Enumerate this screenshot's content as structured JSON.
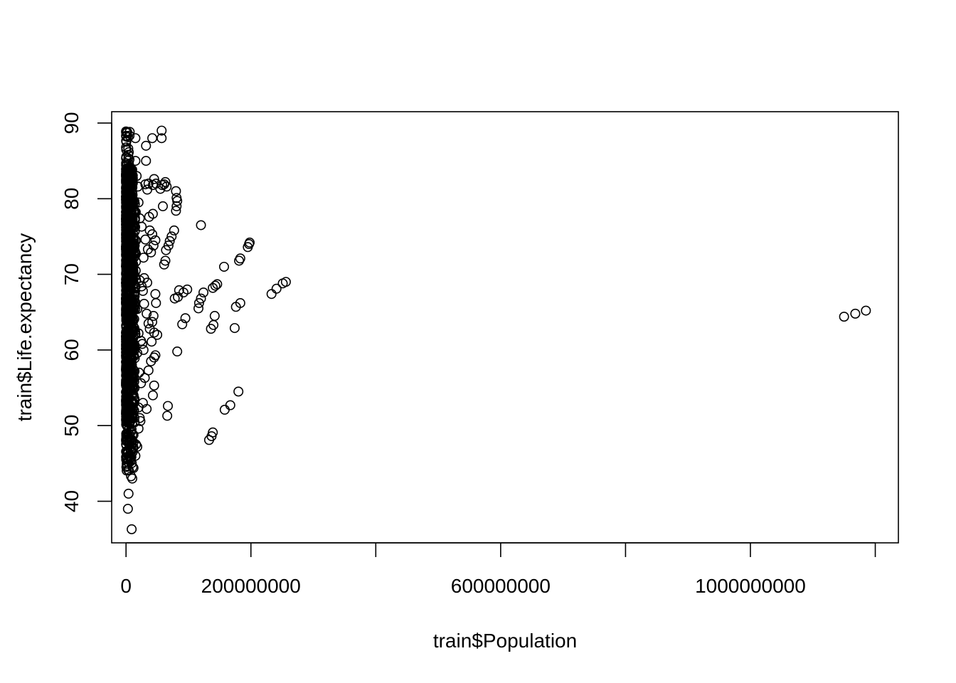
{
  "chart_data": {
    "type": "scatter",
    "title": "",
    "xlabel": "train$Population",
    "ylabel": "train$Life.expectancy",
    "xlim": [
      -23000000,
      1237000000
    ],
    "ylim": [
      34.5,
      91.5
    ],
    "x_ticks": [
      0,
      200000000,
      400000000,
      600000000,
      800000000,
      1000000000,
      1200000000
    ],
    "x_tick_labels": [
      "0",
      "200000000",
      "",
      "600000000",
      "",
      "1000000000",
      ""
    ],
    "y_ticks": [
      40,
      50,
      60,
      70,
      80,
      90
    ],
    "y_tick_labels": [
      "40",
      "50",
      "60",
      "70",
      "80",
      "90"
    ],
    "grid": false,
    "legend": "none",
    "points": [
      [
        1150000000,
        64.4
      ],
      [
        1168000000,
        64.8
      ],
      [
        1185000000,
        65.2
      ],
      [
        120000000,
        76.5
      ],
      [
        233000000,
        67.4
      ],
      [
        241000000,
        68.1
      ],
      [
        251000000,
        68.8
      ],
      [
        256000000,
        69.0
      ],
      [
        195000000,
        73.6
      ],
      [
        197000000,
        74.0
      ],
      [
        198000000,
        74.2
      ],
      [
        181000000,
        71.8
      ],
      [
        183000000,
        72.1
      ],
      [
        157000000,
        71.0
      ],
      [
        174000000,
        62.9
      ],
      [
        176000000,
        65.7
      ],
      [
        183000000,
        66.2
      ],
      [
        136000000,
        62.8
      ],
      [
        140000000,
        63.3
      ],
      [
        142000000,
        64.5
      ],
      [
        139000000,
        68.2
      ],
      [
        143000000,
        68.5
      ],
      [
        146000000,
        68.7
      ],
      [
        116000000,
        65.5
      ],
      [
        120000000,
        66.8
      ],
      [
        124000000,
        67.6
      ],
      [
        117000000,
        66.2
      ],
      [
        90000000,
        63.4
      ],
      [
        95000000,
        64.2
      ],
      [
        92000000,
        67.6
      ],
      [
        98000000,
        68.0
      ],
      [
        78000000,
        66.8
      ],
      [
        83000000,
        67.0
      ],
      [
        85000000,
        67.9
      ],
      [
        82000000,
        59.8
      ],
      [
        133000000,
        48.1
      ],
      [
        137000000,
        48.6
      ],
      [
        139000000,
        49.1
      ],
      [
        158000000,
        52.1
      ],
      [
        167000000,
        52.7
      ],
      [
        180000000,
        54.5
      ],
      [
        66000000,
        51.3
      ],
      [
        67000000,
        52.6
      ],
      [
        80000000,
        78.4
      ],
      [
        81000000,
        79.0
      ],
      [
        82000000,
        79.7
      ],
      [
        81000000,
        80.1
      ],
      [
        80000000,
        81.0
      ],
      [
        61000000,
        81.9
      ],
      [
        63000000,
        82.2
      ],
      [
        55000000,
        81.3
      ],
      [
        58000000,
        81.8
      ],
      [
        65000000,
        81.6
      ],
      [
        59000000,
        79.0
      ],
      [
        64000000,
        73.2
      ],
      [
        68000000,
        73.8
      ],
      [
        70000000,
        74.4
      ],
      [
        73000000,
        75.0
      ],
      [
        77000000,
        75.8
      ],
      [
        61000000,
        71.3
      ],
      [
        63000000,
        71.8
      ],
      [
        57000000,
        89.0
      ],
      [
        57000000,
        88.0
      ],
      [
        42000000,
        88.0
      ],
      [
        32000000,
        87.0
      ],
      [
        32000000,
        85.0
      ],
      [
        15000000,
        88.0
      ],
      [
        15000000,
        85.0
      ],
      [
        45000000,
        82.6
      ],
      [
        43000000,
        81.8
      ],
      [
        36000000,
        82.0
      ],
      [
        34000000,
        81.2
      ],
      [
        31000000,
        81.9
      ],
      [
        48000000,
        82.0
      ],
      [
        47000000,
        74.5
      ],
      [
        42000000,
        75.3
      ],
      [
        38000000,
        75.8
      ],
      [
        35000000,
        73.3
      ],
      [
        40000000,
        72.9
      ],
      [
        44000000,
        73.8
      ],
      [
        43000000,
        78.0
      ],
      [
        37000000,
        77.6
      ],
      [
        28000000,
        72.2
      ],
      [
        31000000,
        74.6
      ],
      [
        34000000,
        68.9
      ],
      [
        29000000,
        69.5
      ],
      [
        25000000,
        68.4
      ],
      [
        22000000,
        69.2
      ],
      [
        48000000,
        66.2
      ],
      [
        47000000,
        67.4
      ],
      [
        44000000,
        64.5
      ],
      [
        42000000,
        63.7
      ],
      [
        45000000,
        62.3
      ],
      [
        50000000,
        62.0
      ],
      [
        41000000,
        61.1
      ],
      [
        38000000,
        62.8
      ],
      [
        36000000,
        63.5
      ],
      [
        33000000,
        64.8
      ],
      [
        45000000,
        59.0
      ],
      [
        47000000,
        59.3
      ],
      [
        40000000,
        58.5
      ],
      [
        36000000,
        57.3
      ],
      [
        30000000,
        56.3
      ],
      [
        45000000,
        55.3
      ],
      [
        43000000,
        54.0
      ],
      [
        33000000,
        52.2
      ],
      [
        20000000,
        52.4
      ],
      [
        22000000,
        51.0
      ],
      [
        18000000,
        59.6
      ],
      [
        21000000,
        57.0
      ],
      [
        24000000,
        55.6
      ],
      [
        27000000,
        53.0
      ],
      [
        20000000,
        49.6
      ],
      [
        23000000,
        50.6
      ],
      [
        18000000,
        47.2
      ],
      [
        16000000,
        47.5
      ],
      [
        15000000,
        46.0
      ],
      [
        12000000,
        44.4
      ],
      [
        10000000,
        43.0
      ],
      [
        8000000,
        43.3
      ],
      [
        4000000,
        41.0
      ],
      [
        3000000,
        39.0
      ],
      [
        9000000,
        36.3
      ],
      [
        20000000,
        79.5
      ],
      [
        22000000,
        77.4
      ],
      [
        25000000,
        76.3
      ],
      [
        19000000,
        81.6
      ],
      [
        17000000,
        83.0
      ],
      [
        14000000,
        72.4
      ],
      [
        16000000,
        69.3
      ],
      [
        18000000,
        65.4
      ],
      [
        20000000,
        62.2
      ],
      [
        24000000,
        61.2
      ],
      [
        27000000,
        67.8
      ],
      [
        29000000,
        66.1
      ],
      [
        26000000,
        60.8
      ],
      [
        28000000,
        60.0
      ],
      [
        12000000,
        76.6
      ],
      [
        13000000,
        73.7
      ],
      [
        11000000,
        70.5
      ],
      [
        13000000,
        67.2
      ],
      [
        11000000,
        64.1
      ],
      [
        12000000,
        60.1
      ],
      [
        11000000,
        55.8
      ],
      [
        13000000,
        52.0
      ],
      [
        10000000,
        48.8
      ],
      [
        12000000,
        47.1
      ]
    ]
  }
}
